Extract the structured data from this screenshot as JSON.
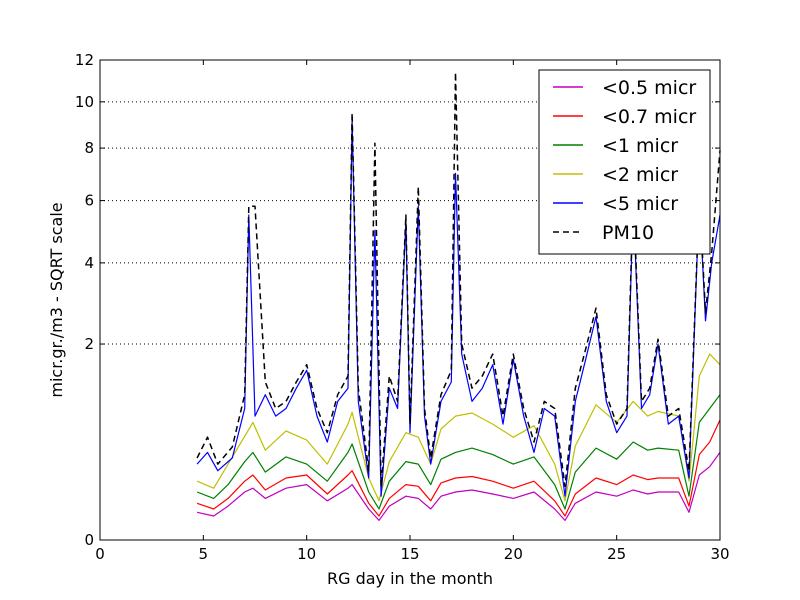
{
  "chart_data": {
    "type": "line",
    "title": "",
    "xlabel": "RG day in the month",
    "ylabel": "micr.gr./m3 - SQRT scale",
    "xlim": [
      0,
      30
    ],
    "ylim": [
      0,
      12
    ],
    "y_scale": "sqrt",
    "x_ticks": [
      0,
      5,
      10,
      15,
      20,
      25,
      30
    ],
    "y_ticks": [
      0,
      2,
      4,
      6,
      8,
      10,
      12
    ],
    "grid": "horizontal dotted",
    "legend_position": "top-right",
    "series": [
      {
        "name": "<0.5 micr",
        "color": "#bf00bf",
        "style": "solid",
        "x": [
          4.7,
          5.5,
          6.2,
          7.0,
          7.4,
          8.0,
          9.0,
          10.0,
          11.0,
          12.0,
          12.2,
          13.0,
          13.5,
          14.0,
          14.8,
          15.4,
          16.0,
          16.5,
          17.2,
          18.0,
          19.0,
          20.0,
          21.0,
          22.0,
          22.5,
          23.0,
          24.0,
          25.0,
          25.8,
          26.5,
          27.0,
          28.0,
          28.5,
          29.0,
          29.5,
          30.0
        ],
        "values": [
          0.04,
          0.03,
          0.06,
          0.12,
          0.14,
          0.09,
          0.14,
          0.16,
          0.08,
          0.14,
          0.16,
          0.05,
          0.02,
          0.06,
          0.1,
          0.09,
          0.05,
          0.1,
          0.12,
          0.13,
          0.11,
          0.09,
          0.12,
          0.05,
          0.02,
          0.07,
          0.12,
          0.1,
          0.13,
          0.11,
          0.12,
          0.12,
          0.04,
          0.22,
          0.28,
          0.4
        ]
      },
      {
        "name": "<0.7 micr",
        "color": "#ff0000",
        "style": "solid",
        "x": [
          4.7,
          5.5,
          6.2,
          7.0,
          7.4,
          8.0,
          9.0,
          10.0,
          11.0,
          12.0,
          12.2,
          13.0,
          13.5,
          14.0,
          14.8,
          15.4,
          16.0,
          16.5,
          17.2,
          18.0,
          19.0,
          20.0,
          21.0,
          22.0,
          22.5,
          23.0,
          24.0,
          25.0,
          25.8,
          26.5,
          27.0,
          28.0,
          28.5,
          29.0,
          29.5,
          30.0
        ],
        "values": [
          0.07,
          0.05,
          0.09,
          0.18,
          0.22,
          0.13,
          0.2,
          0.22,
          0.11,
          0.22,
          0.25,
          0.07,
          0.03,
          0.09,
          0.16,
          0.15,
          0.08,
          0.17,
          0.2,
          0.21,
          0.18,
          0.14,
          0.18,
          0.08,
          0.03,
          0.11,
          0.2,
          0.16,
          0.22,
          0.19,
          0.2,
          0.2,
          0.06,
          0.38,
          0.5,
          0.75
        ]
      },
      {
        "name": "<1 micr",
        "color": "#008000",
        "style": "solid",
        "x": [
          4.7,
          5.5,
          6.2,
          7.0,
          7.4,
          8.0,
          9.0,
          10.0,
          11.0,
          12.0,
          12.2,
          13.0,
          13.5,
          14.0,
          14.8,
          15.4,
          16.0,
          16.5,
          17.2,
          18.0,
          19.0,
          20.0,
          21.0,
          22.0,
          22.5,
          23.0,
          24.0,
          25.0,
          25.8,
          26.5,
          27.0,
          28.0,
          28.5,
          29.0,
          29.5,
          30.0
        ],
        "values": [
          0.12,
          0.09,
          0.16,
          0.32,
          0.4,
          0.24,
          0.36,
          0.3,
          0.18,
          0.4,
          0.48,
          0.12,
          0.05,
          0.18,
          0.32,
          0.3,
          0.16,
          0.34,
          0.4,
          0.44,
          0.38,
          0.3,
          0.36,
          0.16,
          0.05,
          0.24,
          0.44,
          0.34,
          0.5,
          0.42,
          0.44,
          0.42,
          0.1,
          0.72,
          0.9,
          1.1
        ]
      },
      {
        "name": "<2 micr",
        "color": "#bfbf00",
        "style": "solid",
        "x": [
          4.7,
          5.5,
          6.2,
          7.0,
          7.4,
          8.0,
          9.0,
          10.0,
          11.0,
          12.0,
          12.2,
          13.0,
          13.5,
          14.0,
          14.8,
          15.4,
          16.0,
          16.5,
          17.2,
          18.0,
          19.0,
          20.0,
          21.0,
          22.0,
          22.5,
          23.0,
          24.0,
          25.0,
          25.8,
          26.5,
          27.0,
          28.0,
          28.5,
          29.0,
          29.5,
          30.0
        ],
        "values": [
          0.18,
          0.14,
          0.3,
          0.56,
          0.72,
          0.42,
          0.62,
          0.52,
          0.3,
          0.7,
          0.85,
          0.2,
          0.08,
          0.32,
          0.6,
          0.55,
          0.3,
          0.64,
          0.8,
          0.84,
          0.7,
          0.55,
          0.68,
          0.3,
          0.08,
          0.46,
          0.95,
          0.72,
          1.0,
          0.8,
          0.86,
          0.8,
          0.18,
          1.4,
          1.8,
          1.6
        ]
      },
      {
        "name": "<5 micr",
        "color": "#0000ff",
        "style": "solid",
        "x": [
          4.7,
          5.2,
          5.7,
          6.4,
          7.0,
          7.2,
          7.5,
          8.0,
          8.5,
          9.0,
          9.5,
          10.0,
          10.5,
          11.0,
          11.5,
          12.0,
          12.2,
          12.5,
          13.0,
          13.3,
          13.6,
          14.0,
          14.4,
          14.8,
          15.0,
          15.4,
          15.7,
          16.0,
          16.5,
          17.0,
          17.2,
          17.5,
          18.0,
          18.5,
          19.0,
          19.5,
          20.0,
          20.5,
          21.0,
          21.5,
          22.0,
          22.5,
          23.0,
          23.5,
          24.0,
          24.5,
          25.0,
          25.5,
          25.8,
          26.2,
          26.6,
          27.0,
          27.5,
          28.0,
          28.5,
          29.0,
          29.3,
          29.6,
          30.0
        ],
        "values": [
          0.3,
          0.4,
          0.25,
          0.35,
          0.9,
          5.5,
          0.8,
          1.1,
          0.8,
          0.9,
          1.2,
          1.5,
          0.8,
          0.5,
          1.0,
          1.2,
          9.2,
          1.0,
          0.2,
          5.0,
          0.1,
          1.2,
          0.9,
          5.3,
          0.6,
          5.8,
          0.8,
          0.3,
          1.0,
          1.3,
          7.0,
          1.8,
          1.0,
          1.2,
          1.6,
          0.7,
          1.7,
          0.8,
          0.4,
          0.9,
          0.8,
          0.1,
          1.0,
          1.7,
          2.6,
          1.0,
          0.6,
          0.8,
          6.0,
          0.9,
          1.1,
          2.0,
          0.7,
          0.8,
          0.2,
          6.1,
          2.5,
          4.0,
          5.5
        ]
      },
      {
        "name": "PM10",
        "color": "#000000",
        "style": "dashed",
        "x": [
          4.7,
          5.2,
          5.7,
          6.4,
          7.0,
          7.2,
          7.5,
          8.0,
          8.5,
          9.0,
          9.5,
          10.0,
          10.5,
          11.0,
          11.5,
          12.0,
          12.2,
          12.5,
          13.0,
          13.3,
          13.6,
          14.0,
          14.4,
          14.8,
          15.0,
          15.4,
          15.7,
          16.0,
          16.5,
          17.0,
          17.2,
          17.5,
          18.0,
          18.5,
          19.0,
          19.5,
          20.0,
          20.5,
          21.0,
          21.5,
          22.0,
          22.5,
          23.0,
          23.5,
          24.0,
          24.5,
          25.0,
          25.5,
          25.8,
          26.2,
          26.6,
          27.0,
          27.5,
          28.0,
          28.5,
          29.0,
          29.3,
          29.6,
          30.0
        ],
        "values": [
          0.35,
          0.55,
          0.3,
          0.45,
          1.1,
          5.8,
          5.8,
          1.3,
          0.9,
          1.0,
          1.3,
          1.6,
          0.9,
          0.6,
          1.1,
          1.4,
          9.5,
          1.2,
          0.25,
          8.2,
          0.15,
          1.4,
          1.0,
          5.5,
          0.7,
          6.5,
          0.9,
          0.35,
          1.1,
          1.5,
          11.4,
          2.0,
          1.2,
          1.4,
          1.8,
          0.8,
          1.8,
          0.9,
          0.5,
          1.0,
          0.9,
          0.15,
          1.2,
          1.9,
          2.8,
          1.1,
          0.7,
          0.9,
          6.3,
          1.0,
          1.2,
          2.1,
          0.8,
          0.9,
          0.25,
          6.2,
          2.7,
          4.3,
          7.9
        ]
      }
    ]
  }
}
